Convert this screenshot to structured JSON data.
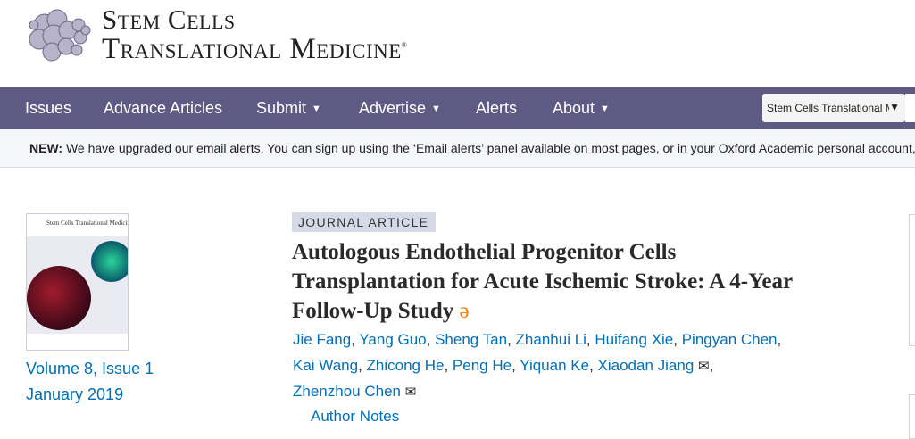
{
  "header": {
    "logo_line1": "Stem Cells",
    "logo_line2": "Translational Medicine",
    "logo_mark": "®"
  },
  "nav": {
    "items": [
      {
        "label": "Issues",
        "dropdown": false
      },
      {
        "label": "Advance Articles",
        "dropdown": false
      },
      {
        "label": "Submit",
        "dropdown": true
      },
      {
        "label": "Advertise",
        "dropdown": true
      },
      {
        "label": "Alerts",
        "dropdown": false
      },
      {
        "label": "About",
        "dropdown": true
      }
    ],
    "search_scope": "Stem Cells Translational M"
  },
  "notice": {
    "prefix": "NEW:",
    "text": " We have upgraded our email alerts. You can sign up using the ‘Email alerts’ panel available on most pages, or in your Oxford Academic personal account, w"
  },
  "issue": {
    "cover_title": "Stem Cells Translational Medicine",
    "volume": "Volume 8, Issue 1",
    "date": "January 2019"
  },
  "article": {
    "type": "JOURNAL ARTICLE",
    "title": "Autologous Endothelial Progenitor Cells Transplantation for Acute Ischemic Stroke: A 4-Year Follow-Up Study",
    "open_access_icon": "open-access-icon",
    "authors": [
      "Jie Fang",
      "Yang Guo",
      "Sheng Tan",
      "Zhanhui Li",
      "Huifang Xie",
      "Pingyan Chen",
      "Kai Wang",
      "Zhicong He",
      "Peng He",
      "Yiquan Ke",
      "Xiaodan Jiang",
      "Zhenzhou Chen"
    ],
    "author_notes": "Author Notes"
  },
  "colors": {
    "nav_bg": "#5f5a83",
    "link": "#006fb7",
    "open_access": "#f68212"
  }
}
